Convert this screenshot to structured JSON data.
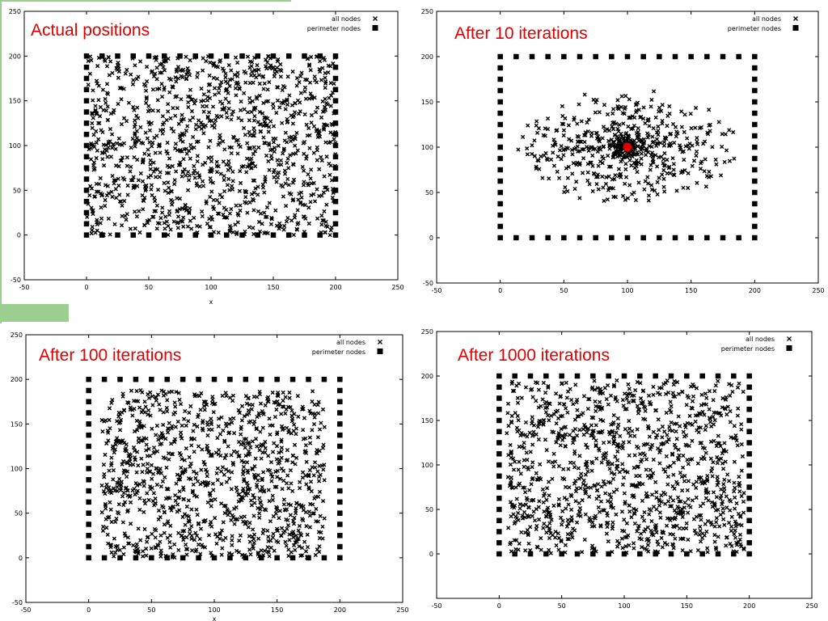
{
  "colors": {
    "title": "#e00000",
    "marker": "#000000",
    "highlight": "#e00000",
    "accent": "#9ccf8f"
  },
  "legend": {
    "all_nodes": "all nodes",
    "perimeter_nodes": "perimeter nodes"
  },
  "chart_data": [
    {
      "type": "scatter",
      "title": "Actual positions",
      "xlabel": "x",
      "xlim": [
        -50,
        250
      ],
      "ylim": [
        -50,
        250
      ],
      "xticks": [
        "-50",
        "0",
        "50",
        "100",
        "150",
        "200",
        "250"
      ],
      "yticks": [
        "-50",
        "0",
        "50",
        "100",
        "150",
        "200",
        "250"
      ],
      "legend_position": "top-right",
      "perimeter": {
        "x_range": [
          0,
          200
        ],
        "y_range": [
          0,
          200
        ],
        "spacing": 12.5
      },
      "nodes": {
        "distribution": "uniform",
        "x_range": [
          0,
          200
        ],
        "y_range": [
          0,
          200
        ],
        "count": 1200,
        "seed": 11
      }
    },
    {
      "type": "scatter",
      "title": "After 10 iterations",
      "xlabel": "",
      "xlim": [
        -50,
        250
      ],
      "ylim": [
        -50,
        250
      ],
      "xticks": [
        "-50",
        "0",
        "50",
        "100",
        "150",
        "200",
        "250"
      ],
      "yticks": [
        "-50",
        "0",
        "50",
        "100",
        "150",
        "200",
        "250"
      ],
      "legend_position": "top-right",
      "perimeter": {
        "x_range": [
          0,
          200
        ],
        "y_range": [
          0,
          200
        ],
        "spacing": 12.5
      },
      "nodes": {
        "distribution": "radial",
        "center": [
          100,
          100
        ],
        "radius": 75,
        "count": 700,
        "seed": 23
      },
      "highlight_point": {
        "x": 100,
        "y": 100
      }
    },
    {
      "type": "scatter",
      "title": "After 100 iterations",
      "xlabel": "x",
      "xlim": [
        -50,
        250
      ],
      "ylim": [
        -50,
        250
      ],
      "xticks": [
        "-50",
        "0",
        "50",
        "100",
        "150",
        "200",
        "250"
      ],
      "yticks": [
        "-50",
        "0",
        "50",
        "100",
        "150",
        "200",
        "250"
      ],
      "legend_position": "top-right",
      "perimeter": {
        "x_range": [
          0,
          200
        ],
        "y_range": [
          0,
          200
        ],
        "spacing": 12.5
      },
      "nodes": {
        "distribution": "uniform",
        "x_range": [
          10,
          188
        ],
        "y_range": [
          0,
          188
        ],
        "count": 1100,
        "seed": 37
      }
    },
    {
      "type": "scatter",
      "title": "After 1000 iterations",
      "xlabel": "",
      "xlim": [
        -50,
        250
      ],
      "ylim": [
        -50,
        250
      ],
      "xticks": [
        "-50",
        "0",
        "50",
        "100",
        "150",
        "200",
        "250"
      ],
      "yticks": [
        "0",
        "50",
        "100",
        "150",
        "200",
        "250"
      ],
      "legend_position": "top-right",
      "perimeter": {
        "x_range": [
          0,
          200
        ],
        "y_range": [
          0,
          200
        ],
        "spacing": 12.5
      },
      "nodes": {
        "distribution": "uniform",
        "x_range": [
          6,
          196
        ],
        "y_range": [
          0,
          195
        ],
        "count": 1150,
        "seed": 53
      }
    }
  ]
}
